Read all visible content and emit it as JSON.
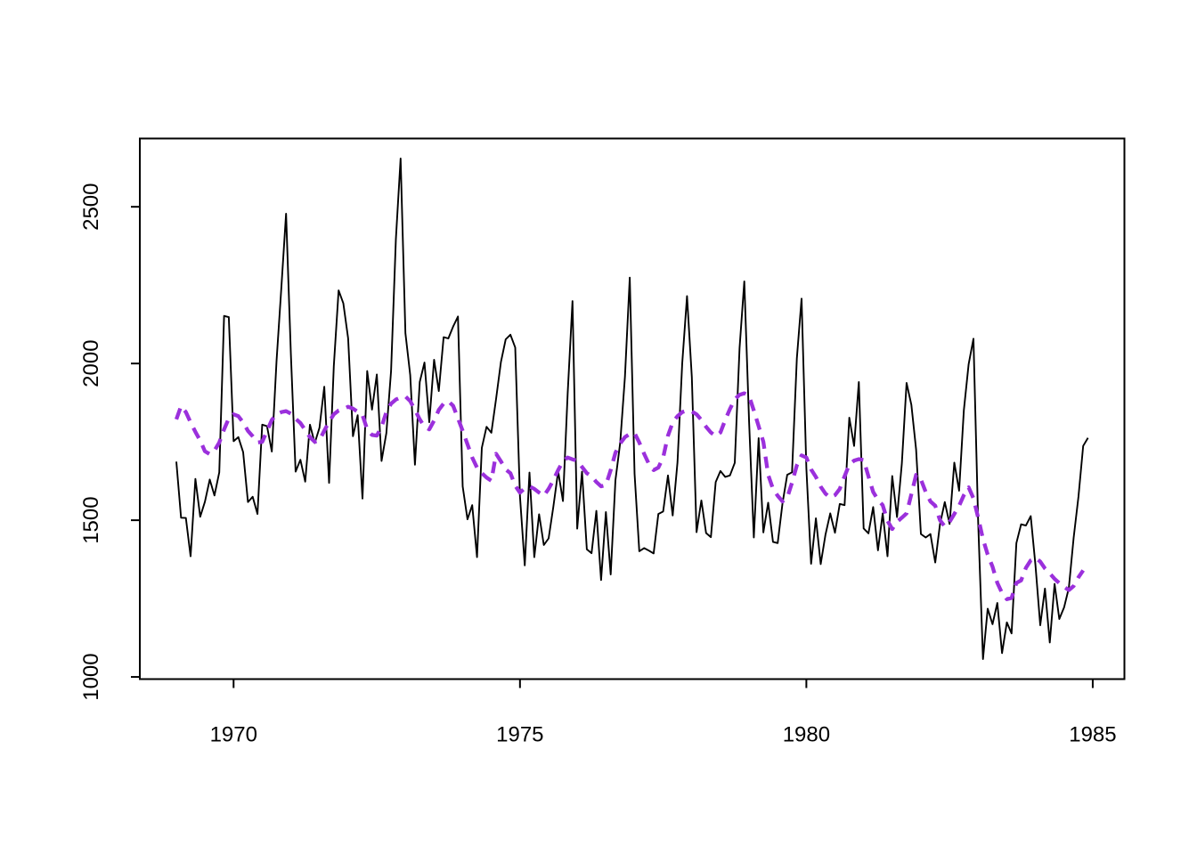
{
  "page": {
    "background_color": "#ffffff",
    "title": ""
  },
  "chart_data": {
    "type": "line",
    "title": "",
    "xlabel": "",
    "ylabel": "",
    "grid": false,
    "legend_position": "none",
    "frame_color": "#000000",
    "x_axis": {
      "ticks": [
        1970,
        1975,
        1980,
        1985
      ],
      "tick_labels": [
        "1970",
        "1975",
        "1980",
        "1985"
      ],
      "lim": [
        1968.363,
        1985.553
      ]
    },
    "y_axis": {
      "ticks": [
        1000,
        1500,
        2000,
        2500
      ],
      "tick_labels": [
        "1000",
        "1500",
        "2000",
        "2500"
      ],
      "lim": [
        993.1,
        2717.9
      ]
    },
    "samples_per_year": 12,
    "series": [
      {
        "name": "monthly-series-black-solid",
        "color": "#000000",
        "line_style": "solid",
        "line_width": 1.9,
        "start_time": 1969.0,
        "values": [
          1687,
          1508,
          1507,
          1385,
          1632,
          1511,
          1559,
          1630,
          1579,
          1653,
          2152,
          2148,
          1752,
          1765,
          1717,
          1558,
          1575,
          1520,
          1805,
          1800,
          1719,
          2008,
          2242,
          2478,
          2030,
          1655,
          1693,
          1623,
          1805,
          1746,
          1795,
          1926,
          1619,
          1992,
          2233,
          2192,
          2080,
          1768,
          1835,
          1569,
          1976,
          1853,
          1965,
          1689,
          1778,
          1976,
          2397,
          2654,
          2097,
          1963,
          1677,
          1941,
          2003,
          1813,
          2012,
          1912,
          2084,
          2080,
          2118,
          2150,
          1608,
          1503,
          1548,
          1382,
          1731,
          1798,
          1779,
          1887,
          2004,
          2077,
          2092,
          2051,
          1577,
          1356,
          1652,
          1382,
          1519,
          1421,
          1442,
          1543,
          1656,
          1561,
          1905,
          2199,
          1473,
          1655,
          1407,
          1395,
          1530,
          1309,
          1526,
          1327,
          1627,
          1748,
          1958,
          2274,
          1648,
          1401,
          1411,
          1403,
          1394,
          1520,
          1528,
          1643,
          1515,
          1685,
          2000,
          2215,
          1956,
          1462,
          1563,
          1459,
          1446,
          1622,
          1657,
          1638,
          1643,
          1683,
          2050,
          2262,
          1813,
          1445,
          1762,
          1461,
          1556,
          1431,
          1427,
          1554,
          1645,
          1653,
          2016,
          2207,
          1665,
          1361,
          1506,
          1360,
          1453,
          1522,
          1460,
          1552,
          1548,
          1827,
          1737,
          1941,
          1474,
          1458,
          1542,
          1404,
          1522,
          1385,
          1641,
          1510,
          1681,
          1938,
          1868,
          1726,
          1456,
          1445,
          1456,
          1365,
          1487,
          1558,
          1488,
          1684,
          1594,
          1850,
          1998,
          2079,
          1494,
          1057,
          1218,
          1168,
          1236,
          1076,
          1174,
          1139,
          1427,
          1487,
          1483,
          1513,
          1357,
          1165,
          1282,
          1110,
          1297,
          1185,
          1222,
          1284,
          1444,
          1575,
          1737,
          1763
        ]
      },
      {
        "name": "smoothed-overlay-purple-dashed",
        "color": "#9b30dc",
        "line_style": "dashed",
        "line_width": 4.3,
        "start_time": 1969.0,
        "values": [
          1822,
          1864,
          1845,
          1812,
          1782,
          1754,
          1720,
          1711,
          1722,
          1748,
          1790,
          1825,
          1838,
          1832,
          1812,
          1785,
          1768,
          1748,
          1750,
          1785,
          1820,
          1838,
          1845,
          1848,
          1840,
          1824,
          1810,
          1788,
          1765,
          1750,
          1755,
          1786,
          1814,
          1838,
          1850,
          1855,
          1862,
          1856,
          1846,
          1835,
          1790,
          1772,
          1770,
          1798,
          1845,
          1872,
          1885,
          1892,
          1895,
          1880,
          1852,
          1822,
          1798,
          1790,
          1818,
          1852,
          1872,
          1880,
          1865,
          1825,
          1785,
          1742,
          1700,
          1668,
          1650,
          1636,
          1626,
          1712,
          1688,
          1662,
          1650,
          1610,
          1588,
          1602,
          1608,
          1600,
          1588,
          1578,
          1600,
          1628,
          1660,
          1688,
          1700,
          1694,
          1690,
          1670,
          1650,
          1640,
          1622,
          1608,
          1612,
          1660,
          1715,
          1745,
          1765,
          1775,
          1778,
          1748,
          1712,
          1680,
          1660,
          1668,
          1700,
          1770,
          1812,
          1832,
          1845,
          1850,
          1847,
          1838,
          1820,
          1798,
          1780,
          1768,
          1780,
          1820,
          1855,
          1886,
          1900,
          1905,
          1896,
          1850,
          1800,
          1750,
          1645,
          1600,
          1578,
          1560,
          1572,
          1620,
          1675,
          1707,
          1700,
          1662,
          1638,
          1607,
          1585,
          1572,
          1580,
          1600,
          1640,
          1678,
          1690,
          1695,
          1692,
          1640,
          1590,
          1565,
          1548,
          1498,
          1472,
          1495,
          1508,
          1522,
          1583,
          1645,
          1630,
          1590,
          1560,
          1546,
          1500,
          1480,
          1495,
          1520,
          1546,
          1580,
          1605,
          1570,
          1508,
          1440,
          1390,
          1352,
          1300,
          1268,
          1248,
          1252,
          1300,
          1308,
          1348,
          1372,
          1380,
          1368,
          1346,
          1330,
          1313,
          1299,
          1287,
          1277,
          1290,
          1318,
          1340
        ]
      }
    ]
  }
}
